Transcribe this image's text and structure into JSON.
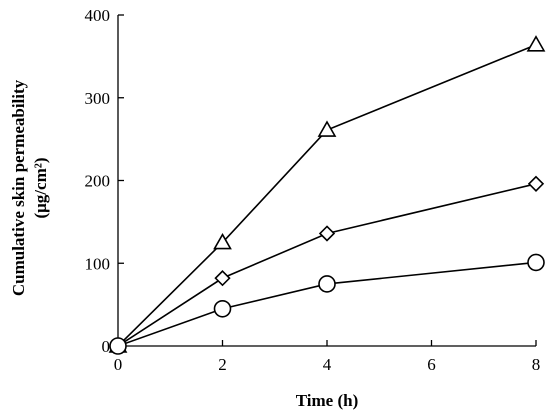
{
  "chart_data": {
    "type": "line",
    "xlabel": "Time (h)",
    "ylabel_line1": "Cumulative skin permeability",
    "ylabel_line2": "(μg/cm²)",
    "xlim": [
      0,
      8
    ],
    "ylim": [
      0,
      400
    ],
    "x_ticks": [
      0,
      2,
      4,
      6,
      8
    ],
    "y_ticks": [
      0,
      100,
      200,
      300,
      400
    ],
    "grid": false,
    "legend": "none",
    "series": [
      {
        "marker": "triangle",
        "x": [
          0,
          2,
          4,
          8
        ],
        "values": [
          0,
          125,
          261,
          364
        ]
      },
      {
        "marker": "diamond",
        "x": [
          0,
          2,
          4,
          8
        ],
        "values": [
          0,
          82,
          136,
          196
        ]
      },
      {
        "marker": "circle",
        "x": [
          0,
          2,
          4,
          8
        ],
        "values": [
          0,
          45,
          75,
          101
        ]
      }
    ],
    "colors": {
      "line": "#000000",
      "marker_fill": "#ffffff"
    }
  }
}
